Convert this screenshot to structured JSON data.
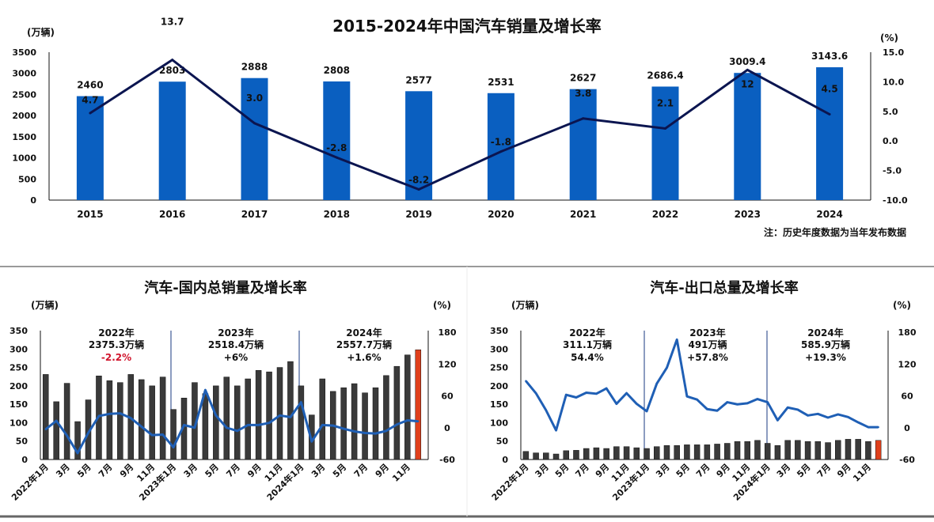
{
  "colors": {
    "bar_blue": "#0a5fc0",
    "line_navy": "#0b1550",
    "bar_dark": "#3a3a3a",
    "bar_highlight": "#e0401c",
    "line_blue": "#1f5fb5",
    "negative_red": "#d0142c"
  },
  "chart_data": [
    {
      "type": "bar+line",
      "title": "2015-2024年中国汽车销量及增长率",
      "ylabel_left": "(万辆)",
      "ylabel_right": "(%)",
      "note": "注：历史年度数据为当年发布数据",
      "categories": [
        "2015",
        "2016",
        "2017",
        "2018",
        "2019",
        "2020",
        "2021",
        "2022",
        "2023",
        "2024"
      ],
      "bar_values": [
        2460,
        2803,
        2888,
        2808,
        2577,
        2531,
        2627,
        2686.4,
        3009.4,
        3143.6
      ],
      "bar_labels": [
        "2460",
        "2803",
        "2888",
        "2808",
        "2577",
        "2531",
        "2627",
        "2686.4",
        "3009.4",
        "3143.6"
      ],
      "line_values": [
        4.7,
        13.7,
        3.0,
        -2.8,
        -8.2,
        -1.8,
        3.8,
        2.1,
        12,
        4.5
      ],
      "line_labels": [
        "4.7",
        "13.7",
        "3.0",
        "-2.8",
        "-8.2",
        "-1.8",
        "3.8",
        "2.1",
        "12",
        "4.5"
      ],
      "ylim_left": [
        0,
        3500
      ],
      "yticks_left": [
        "0",
        "500",
        "1000",
        "1500",
        "2000",
        "2500",
        "3000",
        "3500"
      ],
      "ylim_right": [
        -10,
        15
      ],
      "yticks_right": [
        "-10.0",
        "-5.0",
        "0.0",
        "5.0",
        "10.0",
        "15.0"
      ],
      "grid": false
    },
    {
      "type": "bar+line",
      "title": "汽车-国内总销量及增长率",
      "ylabel_left": "(万辆)",
      "ylabel_right": "(%)",
      "x_tick_labels": [
        "2022年1月",
        "3月",
        "5月",
        "7月",
        "9月",
        "11月",
        "2023年1月",
        "3月",
        "5月",
        "7月",
        "9月",
        "11月",
        "2024年1月",
        "3月",
        "5月",
        "7月",
        "9月",
        "11月"
      ],
      "bar_values": [
        231,
        157,
        207,
        103,
        162,
        227,
        214,
        209,
        231,
        217,
        200,
        224,
        136,
        167,
        209,
        179,
        200,
        224,
        200,
        219,
        242,
        238,
        250,
        266,
        200,
        121,
        219,
        185,
        195,
        206,
        181,
        195,
        228,
        253,
        284,
        298
      ],
      "line_values": [
        -3,
        13,
        -15,
        -48,
        -10,
        22,
        26,
        27,
        18,
        2,
        -14,
        -13,
        -37,
        5,
        0,
        71,
        23,
        0,
        -6,
        5,
        5,
        9,
        23,
        20,
        48,
        -26,
        5,
        4,
        -2,
        -7,
        -10,
        -11,
        -6,
        6,
        14,
        12
      ],
      "ylim_left": [
        0,
        350
      ],
      "yticks_left": [
        "0",
        "50",
        "100",
        "150",
        "200",
        "250",
        "300",
        "350"
      ],
      "ylim_right": [
        -60,
        180
      ],
      "yticks_right": [
        "-60",
        "0",
        "60",
        "120",
        "180"
      ],
      "annotations": [
        {
          "year": "2022年",
          "total": "2375.3万辆",
          "growth": "-2.2%",
          "negative": true
        },
        {
          "year": "2023年",
          "total": "2518.4万辆",
          "growth": "+6%",
          "negative": false
        },
        {
          "year": "2024年",
          "total": "2557.7万辆",
          "growth": "+1.6%",
          "negative": false
        }
      ],
      "grid": false
    },
    {
      "type": "bar+line",
      "title": "汽车-出口总量及增长率",
      "ylabel_left": "(万辆)",
      "ylabel_right": "(%)",
      "x_tick_labels": [
        "2022年1月",
        "3月",
        "5月",
        "7月",
        "9月",
        "11月",
        "2023年1月",
        "3月",
        "5月",
        "7月",
        "9月",
        "11月",
        "2024年1月",
        "3月",
        "5月",
        "7月",
        "9月",
        "11月"
      ],
      "bar_values": [
        22,
        18,
        18,
        15,
        24,
        25,
        30,
        32,
        30,
        35,
        35,
        32,
        30,
        35,
        38,
        38,
        40,
        40,
        40,
        42,
        44,
        49,
        49,
        52,
        44,
        38,
        52,
        52,
        49,
        49,
        46,
        52,
        55,
        55,
        49,
        52
      ],
      "line_values": [
        88,
        65,
        33,
        -5,
        62,
        57,
        66,
        64,
        74,
        45,
        65,
        45,
        31,
        83,
        113,
        166,
        59,
        53,
        35,
        32,
        48,
        44,
        46,
        54,
        48,
        14,
        38,
        34,
        23,
        26,
        19,
        25,
        20,
        10,
        1,
        1
      ],
      "ylim_left": [
        0,
        350
      ],
      "yticks_left": [
        "0",
        "50",
        "100",
        "150",
        "200",
        "250",
        "300",
        "350"
      ],
      "ylim_right": [
        -60,
        180
      ],
      "yticks_right": [
        "-60",
        "0",
        "60",
        "120",
        "180"
      ],
      "annotations": [
        {
          "year": "2022年",
          "total": "311.1万辆",
          "growth": "54.4%",
          "negative": false
        },
        {
          "year": "2023年",
          "total": "491万辆",
          "growth": "+57.8%",
          "negative": false
        },
        {
          "year": "2024年",
          "total": "585.9万辆",
          "growth": "+19.3%",
          "negative": false
        }
      ],
      "grid": false
    }
  ]
}
